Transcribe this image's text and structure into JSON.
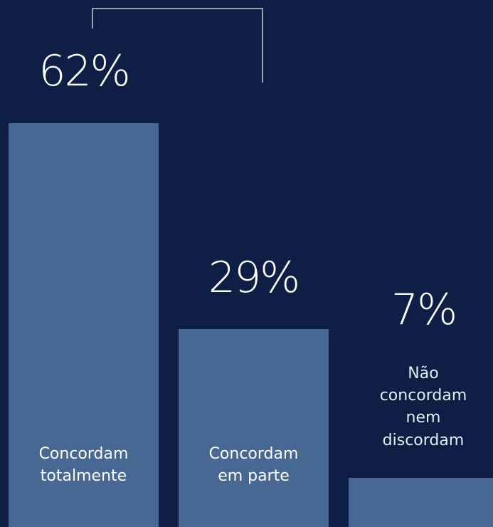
{
  "chart_data": {
    "type": "bar",
    "title": "",
    "xlabel": "",
    "ylabel": "",
    "ylim": [
      0,
      65
    ],
    "categories": [
      "Concordam\ntotalmente",
      "Concordam\nem parte",
      "Não\nconcordam\nnem\ndiscordam"
    ],
    "values": [
      62,
      29,
      7
    ],
    "value_labels": [
      "62%",
      "29%",
      "7%"
    ],
    "bar_color": "#486894",
    "background_color": "#0f1e44",
    "label_color": "#ffffff"
  }
}
